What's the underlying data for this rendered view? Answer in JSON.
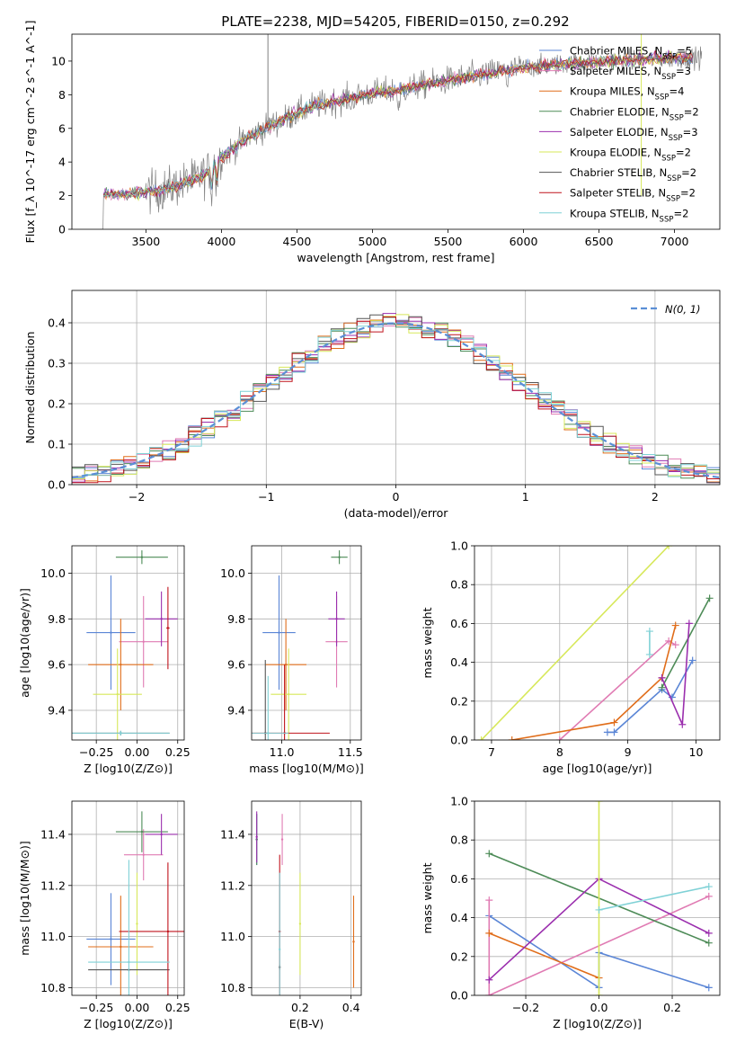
{
  "figure": {
    "title": "PLATE=2238, MJD=54205, FIBERID=0150, z=0.292"
  },
  "colors": {
    "chabrier_miles": "#5b86d6",
    "salpeter_miles": "#e07bb3",
    "kroupa_miles": "#e06d1a",
    "chabrier_elodie": "#4d8b57",
    "salpeter_elodie": "#9b2fae",
    "kroupa_elodie": "#d7e85a",
    "chabrier_stelib": "#555555",
    "salpeter_stelib": "#c0141d",
    "kroupa_stelib": "#7fd1d6",
    "gaussian": "#5b8fd6"
  },
  "chart_data": [
    {
      "type": "line",
      "title": "PLATE=2238, MJD=54205, FIBERID=0150, z=0.292",
      "xlabel": "wavelength [Angstrom, rest frame]",
      "ylabel": "Flux [f_λ 10^-17 erg cm^-2 s^-1 A^-1]",
      "xlim": [
        3010,
        7300
      ],
      "ylim": [
        0,
        11.6
      ],
      "xticks": [
        3500,
        4000,
        4500,
        5000,
        5500,
        6000,
        6500,
        7000
      ],
      "yticks": [
        0,
        2,
        4,
        6,
        8,
        10
      ],
      "grid": false,
      "legend_position": "upper right",
      "continuum": {
        "wavelength": [
          3220,
          3400,
          3600,
          3800,
          3900,
          4000,
          4200,
          4400,
          4600,
          4800,
          5000,
          5200,
          5400,
          5600,
          5800,
          6000,
          6200,
          6400,
          6600,
          6800,
          7000,
          7100
        ],
        "flux": [
          2.05,
          2.1,
          2.3,
          2.9,
          3.3,
          4.3,
          5.6,
          6.5,
          7.3,
          7.7,
          8.1,
          8.3,
          8.7,
          9.0,
          9.3,
          9.6,
          9.8,
          9.9,
          10.0,
          10.1,
          10.2,
          10.2
        ]
      },
      "series": [
        {
          "name": "Chabrier MILES, N_SSP=5",
          "color_key": "chabrier_miles"
        },
        {
          "name": "Salpeter MILES, N_SSP=3",
          "color_key": "salpeter_miles"
        },
        {
          "name": "Kroupa MILES, N_SSP=4",
          "color_key": "kroupa_miles"
        },
        {
          "name": "Chabrier ELODIE, N_SSP=2",
          "color_key": "chabrier_elodie"
        },
        {
          "name": "Salpeter ELODIE, N_SSP=3",
          "color_key": "salpeter_elodie"
        },
        {
          "name": "Kroupa ELODIE, N_SSP=2",
          "color_key": "kroupa_elodie"
        },
        {
          "name": "Chabrier STELIB, N_SSP=2",
          "color_key": "chabrier_stelib"
        },
        {
          "name": "Salpeter STELIB, N_SSP=2",
          "color_key": "salpeter_stelib"
        },
        {
          "name": "Kroupa STELIB, N_SSP=2",
          "color_key": "kroupa_stelib"
        }
      ]
    },
    {
      "type": "line",
      "xlabel": "(data-model)/error",
      "ylabel": "Normed distribution",
      "xlim": [
        -2.5,
        2.5
      ],
      "ylim": [
        0,
        0.48
      ],
      "xticks": [
        -2,
        -1,
        0,
        1,
        2
      ],
      "yticks": [
        0.0,
        0.1,
        0.2,
        0.3,
        0.4
      ],
      "grid": true,
      "legend_position": "upper right",
      "gaussian_label": "N(0,1)",
      "bin_width": 0.1,
      "bins_start": -2.5
    },
    {
      "type": "scatter",
      "xlabel": "Z [log10(Z/Z⊙)]",
      "ylabel": "age  [log10(age/yr)]",
      "xlim": [
        -0.4,
        0.29
      ],
      "ylim": [
        9.27,
        10.12
      ],
      "xticks": [
        -0.25,
        0.0,
        0.25
      ],
      "xticklabels": [
        "−0.25",
        "0.00",
        "0.25"
      ],
      "yticks": [
        9.4,
        9.6,
        9.8,
        10.0
      ],
      "grid": true,
      "points": [
        {
          "series": "chabrier_miles",
          "x": -0.16,
          "y": 9.74,
          "xerr": 0.15,
          "yerr": 0.25
        },
        {
          "series": "salpeter_miles",
          "x": 0.04,
          "y": 9.7,
          "xerr": 0.15,
          "yerr": 0.2
        },
        {
          "series": "kroupa_miles",
          "x": -0.1,
          "y": 9.6,
          "xerr": 0.2,
          "yerr": 0.2
        },
        {
          "series": "chabrier_elodie",
          "x": 0.03,
          "y": 10.07,
          "xerr": 0.16,
          "yerr": 0.03
        },
        {
          "series": "salpeter_elodie",
          "x": 0.15,
          "y": 9.8,
          "xerr": 0.1,
          "yerr": 0.12
        },
        {
          "series": "kroupa_elodie",
          "x": -0.12,
          "y": 9.47,
          "xerr": 0.15,
          "yerr": 0.2
        },
        {
          "series": "chabrier_stelib",
          "x": -0.1,
          "y": 9.3,
          "xerr": 0.3,
          "yerr": 0.01
        },
        {
          "series": "salpeter_stelib",
          "x": 0.19,
          "y": 9.76,
          "xerr": 0.01,
          "yerr": 0.18
        },
        {
          "series": "kroupa_stelib",
          "x": -0.1,
          "y": 9.3,
          "xerr": 0.3,
          "yerr": 0.01
        }
      ]
    },
    {
      "type": "scatter",
      "xlabel": "mass [log10(M/M⊙)]",
      "ylabel": "",
      "xlim": [
        10.78,
        11.58
      ],
      "ylim": [
        9.27,
        10.12
      ],
      "xticks": [
        11.0,
        11.5
      ],
      "yticks": [
        9.4,
        9.6,
        9.8,
        10.0
      ],
      "grid": true,
      "points": [
        {
          "series": "chabrier_miles",
          "x": 10.98,
          "y": 9.74,
          "xerr": 0.12,
          "yerr": 0.25
        },
        {
          "series": "salpeter_miles",
          "x": 11.4,
          "y": 9.7,
          "xerr": 0.08,
          "yerr": 0.2
        },
        {
          "series": "kroupa_miles",
          "x": 11.03,
          "y": 9.6,
          "xerr": 0.15,
          "yerr": 0.2
        },
        {
          "series": "chabrier_elodie",
          "x": 11.42,
          "y": 10.07,
          "xerr": 0.06,
          "yerr": 0.03
        },
        {
          "series": "salpeter_elodie",
          "x": 11.4,
          "y": 9.8,
          "xerr": 0.06,
          "yerr": 0.12
        },
        {
          "series": "kroupa_elodie",
          "x": 11.05,
          "y": 9.47,
          "xerr": 0.13,
          "yerr": 0.2
        },
        {
          "series": "chabrier_stelib",
          "x": 10.88,
          "y": 9.3,
          "xerr": 0.0,
          "yerr": 0.32
        },
        {
          "series": "salpeter_stelib",
          "x": 11.02,
          "y": 9.3,
          "xerr": 0.33,
          "yerr": 0.3
        },
        {
          "series": "kroupa_stelib",
          "x": 10.9,
          "y": 9.3,
          "xerr": 0.15,
          "yerr": 0.25
        }
      ]
    },
    {
      "type": "line",
      "xlabel": "age  [log10(age/yr)]",
      "ylabel": "mass weight",
      "xlim": [
        6.75,
        10.35
      ],
      "ylim": [
        0,
        1.0
      ],
      "xticks": [
        7,
        8,
        9,
        10
      ],
      "yticks": [
        0.0,
        0.2,
        0.4,
        0.6,
        0.8,
        1.0
      ],
      "grid": true,
      "series": [
        {
          "series": "chabrier_miles",
          "x": [
            8.7,
            8.8,
            9.5,
            9.65,
            9.95
          ],
          "y": [
            0.04,
            0.04,
            0.26,
            0.22,
            0.41
          ]
        },
        {
          "series": "salpeter_miles",
          "x": [
            8.0,
            9.6,
            9.7
          ],
          "y": [
            0.0,
            0.51,
            0.49
          ]
        },
        {
          "series": "kroupa_miles",
          "x": [
            7.3,
            8.8,
            9.5,
            9.7
          ],
          "y": [
            0.0,
            0.09,
            0.32,
            0.59
          ]
        },
        {
          "series": "chabrier_elodie",
          "x": [
            9.5,
            10.2
          ],
          "y": [
            0.27,
            0.73
          ]
        },
        {
          "series": "salpeter_elodie",
          "x": [
            9.5,
            9.8,
            9.9
          ],
          "y": [
            0.32,
            0.08,
            0.6
          ]
        },
        {
          "series": "kroupa_elodie",
          "x": [
            6.85,
            9.6
          ],
          "y": [
            0.0,
            1.0
          ]
        },
        {
          "series": "kroupa_stelib",
          "x": [
            9.32,
            9.32
          ],
          "y": [
            0.44,
            0.56
          ]
        }
      ]
    },
    {
      "type": "scatter",
      "xlabel": "Z [log10(Z/Z⊙)]",
      "ylabel": "mass [log10(M/M⊙)]",
      "xlim": [
        -0.4,
        0.29
      ],
      "ylim": [
        10.77,
        11.53
      ],
      "xticks": [
        -0.25,
        0.0,
        0.25
      ],
      "xticklabels": [
        "−0.25",
        "0.00",
        "0.25"
      ],
      "yticks": [
        10.8,
        11.0,
        11.2,
        11.4
      ],
      "grid": true,
      "points": [
        {
          "series": "chabrier_miles",
          "x": -0.16,
          "y": 10.99,
          "xerr": 0.15,
          "yerr": 0.18
        },
        {
          "series": "salpeter_miles",
          "x": 0.04,
          "y": 11.32,
          "xerr": 0.12,
          "yerr": 0.1
        },
        {
          "series": "kroupa_miles",
          "x": -0.1,
          "y": 10.96,
          "xerr": 0.2,
          "yerr": 0.2
        },
        {
          "series": "chabrier_elodie",
          "x": 0.03,
          "y": 11.41,
          "xerr": 0.16,
          "yerr": 0.08
        },
        {
          "series": "salpeter_elodie",
          "x": 0.15,
          "y": 11.4,
          "xerr": 0.1,
          "yerr": 0.08
        },
        {
          "series": "kroupa_elodie",
          "x": 0.0,
          "y": 11.05,
          "xerr": 0.0,
          "yerr": 0.2
        },
        {
          "series": "chabrier_stelib",
          "x": -0.05,
          "y": 10.87,
          "xerr": 0.25,
          "yerr": 0.0
        },
        {
          "series": "salpeter_stelib",
          "x": 0.19,
          "y": 11.02,
          "xerr": 0.3,
          "yerr": 0.27
        },
        {
          "series": "kroupa_stelib",
          "x": -0.05,
          "y": 10.9,
          "xerr": 0.25,
          "yerr": 0.4
        }
      ]
    },
    {
      "type": "scatter",
      "xlabel": "E(B-V)",
      "ylabel": "",
      "xlim": [
        0.01,
        0.44
      ],
      "ylim": [
        10.77,
        11.53
      ],
      "xticks": [
        0.2,
        0.4
      ],
      "yticks": [
        10.8,
        11.0,
        11.2,
        11.4
      ],
      "grid": true,
      "points": [
        {
          "series": "chabrier_miles",
          "x": 0.03,
          "y": 11.38,
          "yerr": 0.1
        },
        {
          "series": "salpeter_miles",
          "x": 0.13,
          "y": 11.38,
          "yerr": 0.1
        },
        {
          "series": "kroupa_miles",
          "x": 0.41,
          "y": 10.98,
          "yerr": 0.18
        },
        {
          "series": "chabrier_elodie",
          "x": 0.03,
          "y": 11.38,
          "yerr": 0.1
        },
        {
          "series": "salpeter_elodie",
          "x": 0.03,
          "y": 11.39,
          "yerr": 0.1
        },
        {
          "series": "kroupa_elodie",
          "x": 0.2,
          "y": 11.05,
          "yerr": 0.2
        },
        {
          "series": "chabrier_stelib",
          "x": 0.12,
          "y": 10.88,
          "yerr": 0.01
        },
        {
          "series": "salpeter_stelib",
          "x": 0.12,
          "y": 11.02,
          "yerr": 0.3
        },
        {
          "series": "kroupa_stelib",
          "x": 0.12,
          "y": 10.95,
          "yerr": 0.3
        }
      ]
    },
    {
      "type": "line",
      "xlabel": "Z [log10(Z/Z⊙)]",
      "ylabel": "mass weight",
      "xlim": [
        -0.34,
        0.33
      ],
      "ylim": [
        0,
        1.0
      ],
      "xticks": [
        -0.2,
        0.0,
        0.2
      ],
      "xticklabels": [
        "−0.2",
        "0.0",
        "0.2"
      ],
      "yticks": [
        0.0,
        0.2,
        0.4,
        0.6,
        0.8,
        1.0
      ],
      "grid": true,
      "series": [
        {
          "series": "chabrier_miles",
          "x": [
            -0.3,
            0.0,
            0.0,
            0.3
          ],
          "y": [
            0.41,
            0.04,
            0.22,
            0.04
          ]
        },
        {
          "series": "salpeter_miles",
          "x": [
            -0.3,
            -0.3,
            0.3
          ],
          "y": [
            0.49,
            0.0,
            0.51
          ]
        },
        {
          "series": "kroupa_miles",
          "x": [
            -0.3,
            0.0
          ],
          "y": [
            0.32,
            0.09
          ]
        },
        {
          "series": "chabrier_elodie",
          "x": [
            -0.3,
            0.3
          ],
          "y": [
            0.73,
            0.27
          ]
        },
        {
          "series": "salpeter_elodie",
          "x": [
            -0.3,
            0.0,
            0.3
          ],
          "y": [
            0.08,
            0.6,
            0.32
          ]
        },
        {
          "series": "kroupa_elodie",
          "x": [
            0.0,
            0.0
          ],
          "y": [
            0.0,
            1.0
          ]
        },
        {
          "series": "kroupa_stelib",
          "x": [
            0.0,
            0.3
          ],
          "y": [
            0.44,
            0.56
          ]
        }
      ]
    }
  ]
}
